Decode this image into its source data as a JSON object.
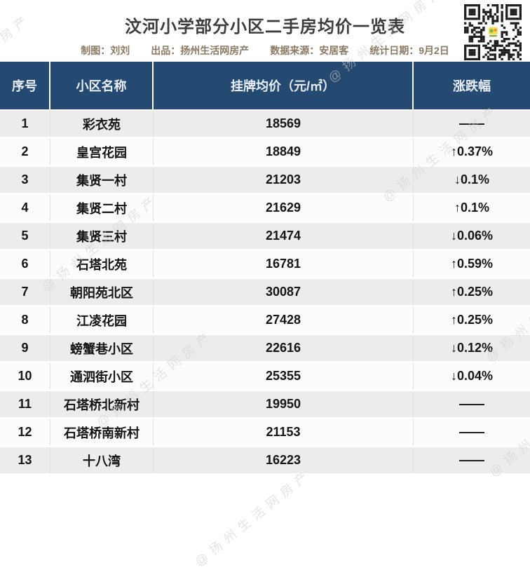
{
  "header": {
    "meta": {
      "made_by": "制图：刘刘",
      "published_by": "出品：扬州生活网房产",
      "data_source": "数据来源：安居客",
      "stat_date": "统计日期：9月2日"
    },
    "qr_icon": "qr-code"
  },
  "watermark": {
    "text": "@扬州生活网房产"
  },
  "colors": {
    "header_bg": "#254a72",
    "stripe_bg": "#ececec",
    "title_text": "#3c3c3c",
    "meta_text": "#8b7962",
    "body_text": "#141414",
    "watermark": "#cfcfcf"
  },
  "chart_data": {
    "type": "table",
    "title": "汶河小学部分小区二手房均价一览表",
    "columns": [
      "序号",
      "小区名称",
      "挂牌均价（元/㎡）",
      "涨跌幅"
    ],
    "rows": [
      [
        "1",
        "彩衣苑",
        "18569",
        "——"
      ],
      [
        "2",
        "皇宫花园",
        "18849",
        "↑0.37%"
      ],
      [
        "3",
        "集贤一村",
        "21203",
        "↓0.1%"
      ],
      [
        "4",
        "集贤二村",
        "21629",
        "↑0.1%"
      ],
      [
        "5",
        "集贤三村",
        "21474",
        "↓0.06%"
      ],
      [
        "6",
        "石塔北苑",
        "16781",
        "↑0.59%"
      ],
      [
        "7",
        "朝阳苑北区",
        "30087",
        "↑0.25%"
      ],
      [
        "8",
        "江凌花园",
        "27428",
        "↑0.25%"
      ],
      [
        "9",
        "螃蟹巷小区",
        "22616",
        "↓0.12%"
      ],
      [
        "10",
        "通泗街小区",
        "25355",
        "↓0.04%"
      ],
      [
        "11",
        "石塔桥北新村",
        "19950",
        "——"
      ],
      [
        "12",
        "石塔桥南新村",
        "21153",
        "——"
      ],
      [
        "13",
        "十八湾",
        "16223",
        "——"
      ]
    ],
    "change_directions": [
      "none",
      "up",
      "down",
      "up",
      "down",
      "up",
      "up",
      "up",
      "down",
      "down",
      "none",
      "none",
      "none"
    ]
  }
}
